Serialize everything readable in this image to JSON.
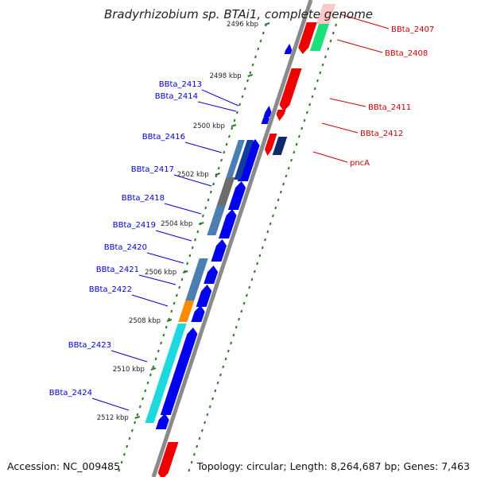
{
  "title": "Bradyrhizobium sp. BTAi1, complete genome",
  "accession": "Accession: NC_009485",
  "summary": "Topology: circular; Length: 8,264,687 bp; Genes: 7,463",
  "colors": {
    "backbone": "#8a8a8a",
    "forward_gene": "#0000ee",
    "reverse_gene": "#ee0000",
    "forward_label": "#0000cc",
    "reverse_label": "#cc0000",
    "scale_dots": "#2b7a2b"
  },
  "tick_labels": [
    "2496 kbp",
    "2498 kbp",
    "2500 kbp",
    "2502 kbp",
    "2504 kbp",
    "2506 kbp",
    "2508 kbp",
    "2510 kbp",
    "2512 kbp"
  ],
  "forward_labels": [
    "BBta_2413",
    "BBta_2414",
    "BBta_2416",
    "BBta_2417",
    "BBta_2418",
    "BBta_2419",
    "BBta_2420",
    "BBta_2421",
    "BBta_2422",
    "BBta_2423",
    "BBta_2424"
  ],
  "reverse_labels": [
    "BBta_2407",
    "BBta_2408",
    "BBta_2411",
    "BBta_2412",
    "pncA"
  ]
}
